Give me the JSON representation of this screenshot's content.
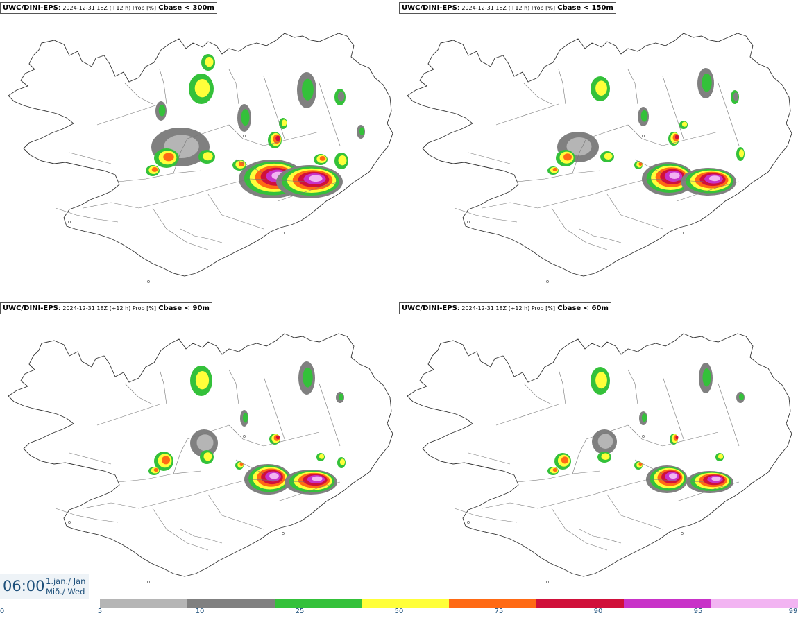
{
  "panels": [
    {
      "source": "UWC/DINI-EPS",
      "meta": "2024-12-31 18Z (+12 h) Prob [%]",
      "threshold": "Cbase < 300m"
    },
    {
      "source": "UWC/DINI-EPS",
      "meta": "2024-12-31 18Z (+12 h) Prob [%]",
      "threshold": "Cbase < 150m"
    },
    {
      "source": "UWC/DINI-EPS",
      "meta": "2024-12-31 18Z (+12 h) Prob [%]",
      "threshold": "Cbase < 90m"
    },
    {
      "source": "UWC/DINI-EPS",
      "meta": "2024-12-31 18Z (+12 h) Prob [%]",
      "threshold": "Cbase < 60m"
    }
  ],
  "time": {
    "clock": "06:00",
    "date_line1": "1.jan./ Jan",
    "date_line2": "Mið./ Wed"
  },
  "legend": {
    "ticks": [
      "0",
      "5",
      "10",
      "25",
      "50",
      "75",
      "90",
      "95",
      "99"
    ],
    "colors": [
      "#b5b5b5",
      "#808080",
      "#34c13a",
      "#ffff3a",
      "#ff6a14",
      "#d0103a",
      "#c832c8",
      "#f2b4f2"
    ]
  }
}
